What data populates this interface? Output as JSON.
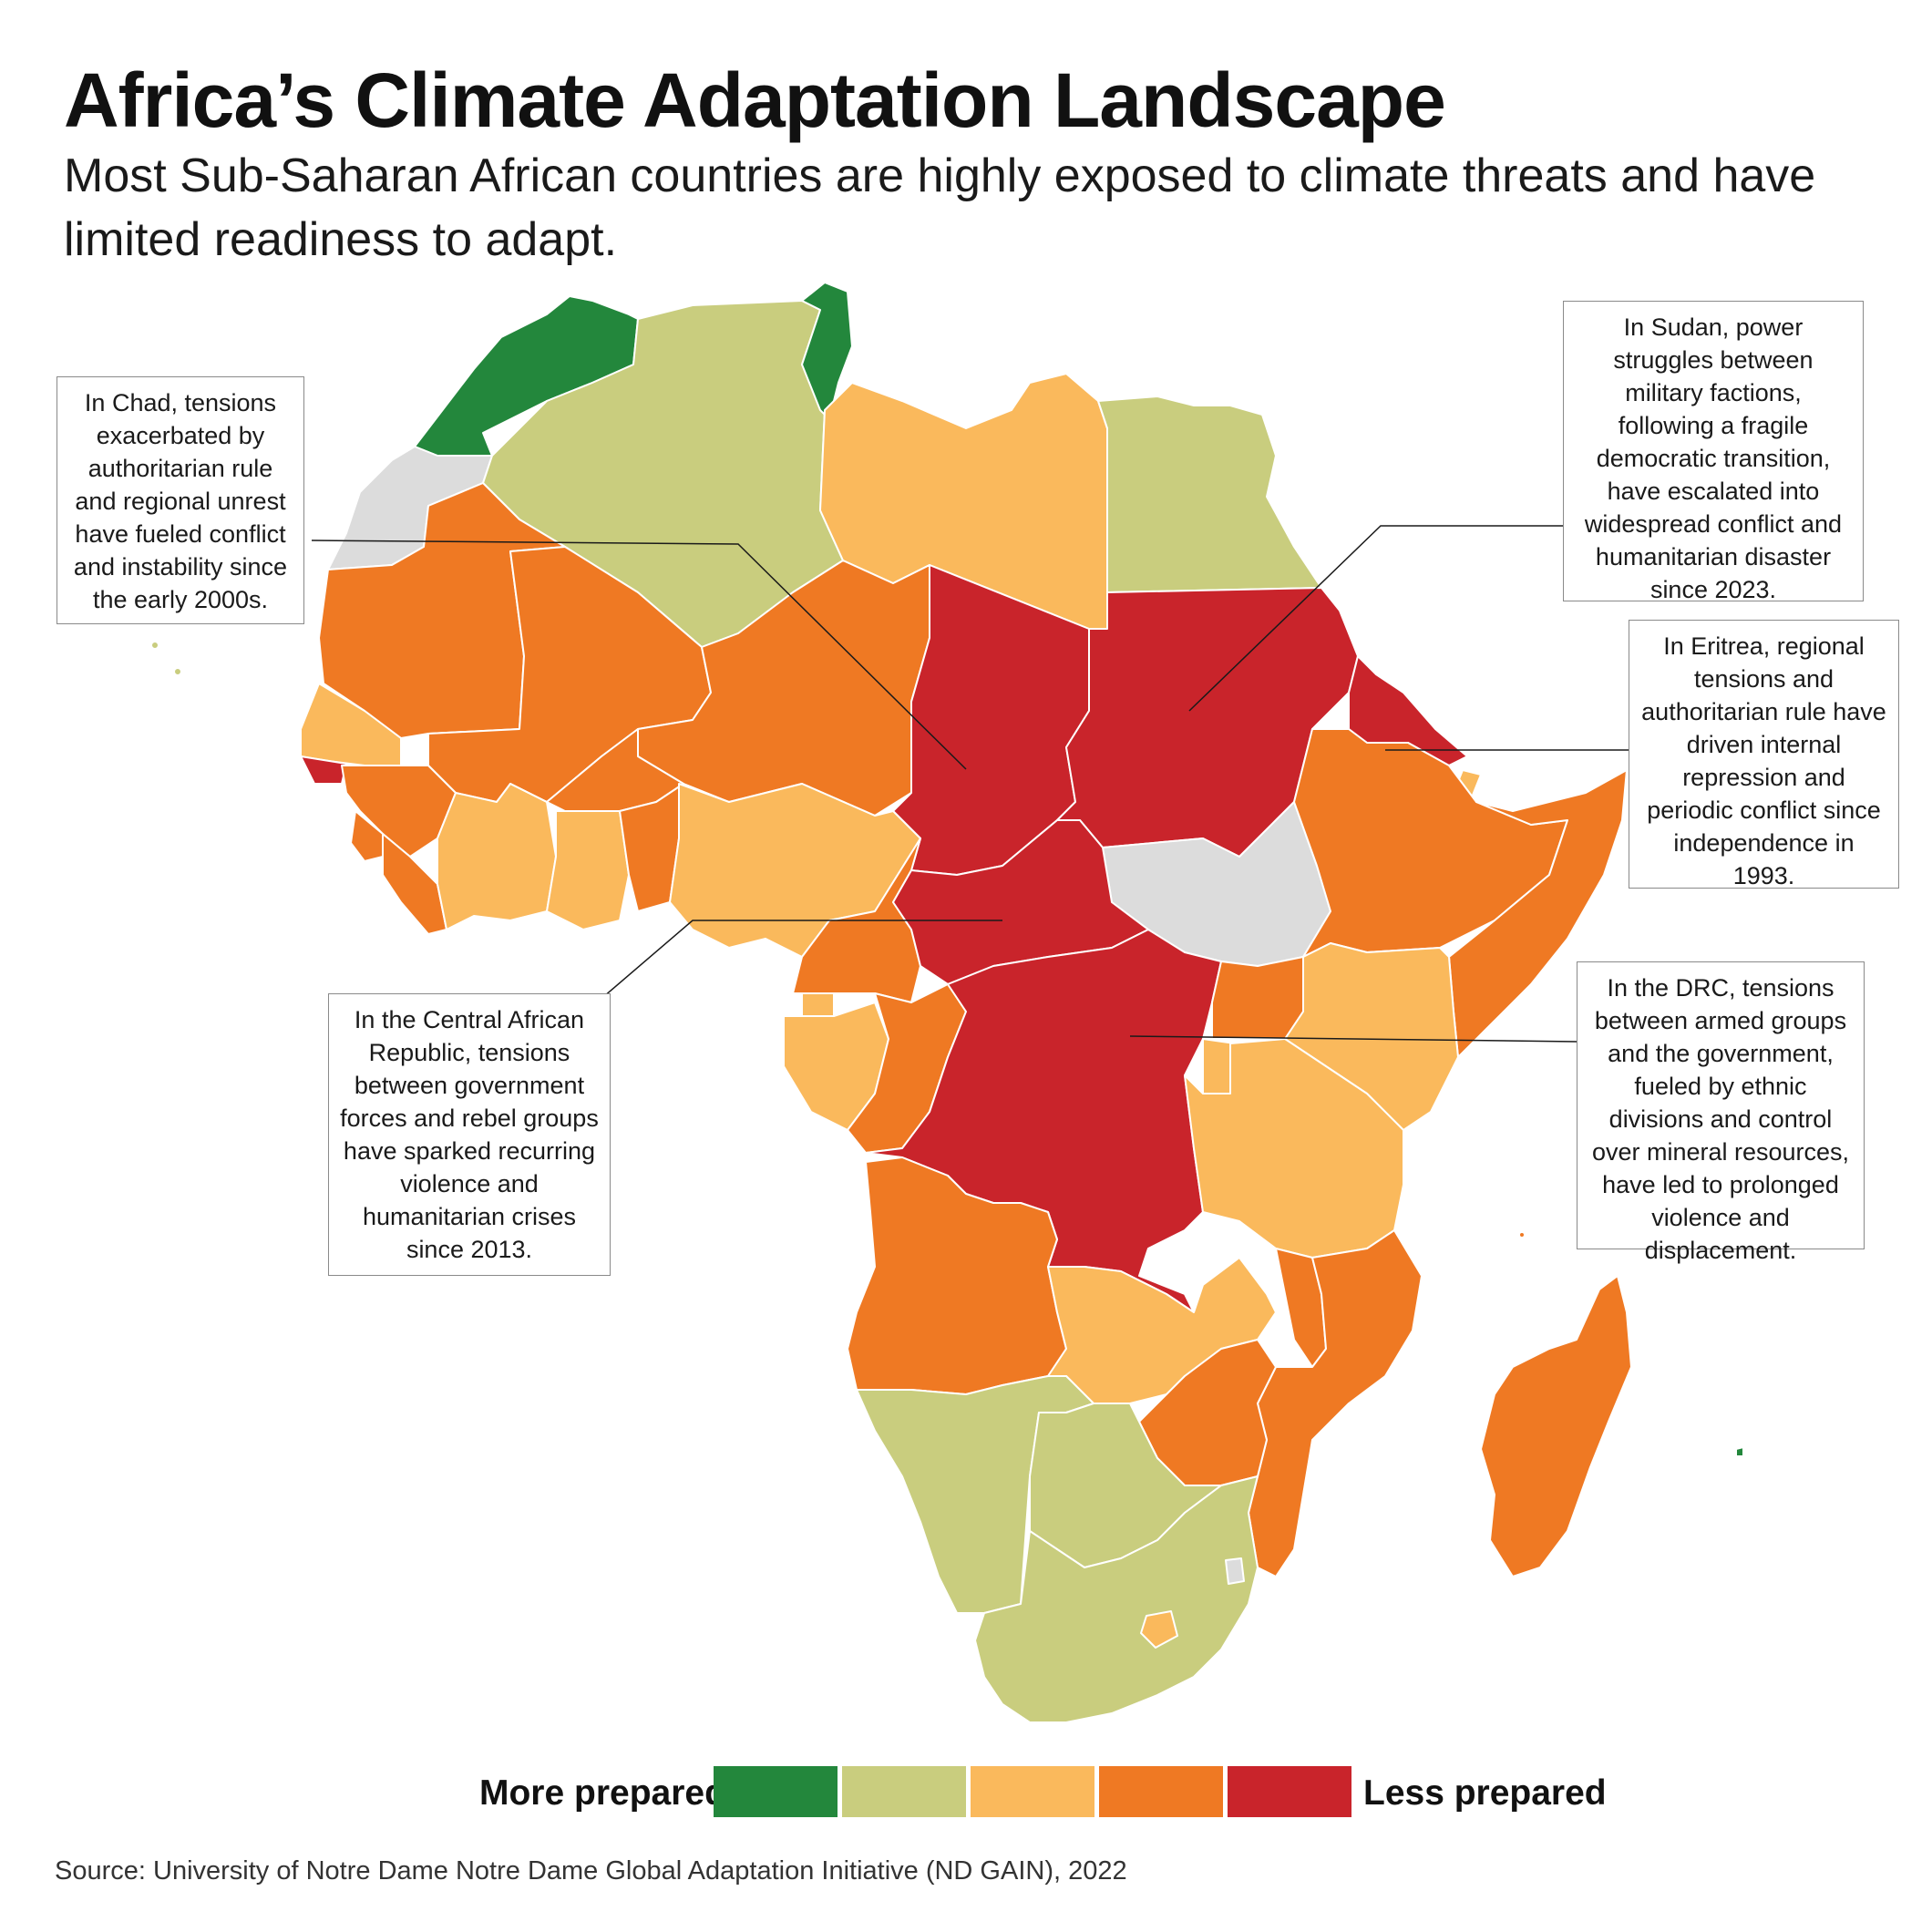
{
  "header": {
    "title": "Africa’s Climate Adaptation Landscape",
    "subtitle": "Most Sub-Saharan African countries are highly exposed to climate threats and have limited readiness to adapt."
  },
  "colors": {
    "more_prepared": "#23873c",
    "prepared": "#c9cd7e",
    "middle": "#fab95c",
    "less": "#ef7923",
    "least_prepared": "#c9242b",
    "no_data": "#dcdcdc"
  },
  "callouts": {
    "chad": "In Chad, tensions exacerbated by authoritarian rule and regional unrest have fueled conflict and instability since the early 2000s.",
    "sudan": "In Sudan, power struggles between military factions, following a fragile democratic transition, have escalated into widespread conflict and humanitarian disaster since 2023.",
    "eritrea": "In Eritrea, regional tensions and authoritarian rule have driven internal repression and periodic conflict since independence in 1993.",
    "car": "In the Central African Republic, tensions between government forces and rebel groups have sparked recurring violence and humanitarian crises since 2013.",
    "drc": "In the DRC, tensions between armed groups and the government, fueled by ethnic divisions and control over mineral resources, have led to prolonged violence and displacement."
  },
  "legend": {
    "left_label": "More prepared",
    "right_label": "Less prepared",
    "levels": [
      "#23873c",
      "#c9cd7e",
      "#fab95c",
      "#ef7923",
      "#c9242b"
    ]
  },
  "source": "Source: University of Notre Dame Notre Dame Global Adaptation Initiative (ND GAIN), 2022"
}
